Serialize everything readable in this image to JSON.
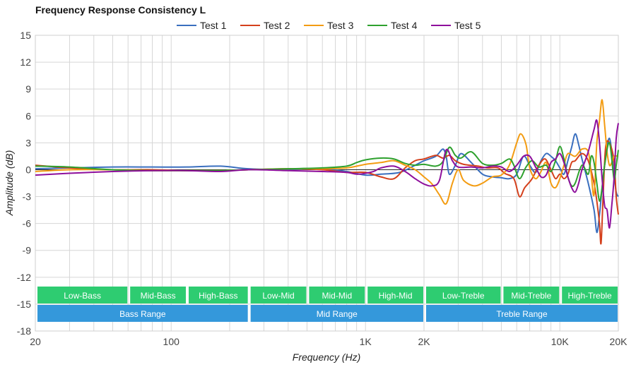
{
  "chart_data": {
    "type": "line",
    "title": "Frequency Response Consistency L",
    "xlabel": "Frequency (Hz)",
    "ylabel": "Amplitude (dB)",
    "x_scale": "log",
    "xlim": [
      20,
      20000
    ],
    "ylim": [
      -18,
      15
    ],
    "legend_position": "top-center",
    "grid": true,
    "x_ticks": [
      {
        "value": 20,
        "label": "20"
      },
      {
        "value": 100,
        "label": "100"
      },
      {
        "value": 1000,
        "label": "1K"
      },
      {
        "value": 2000,
        "label": "2K"
      },
      {
        "value": 10000,
        "label": "10K"
      },
      {
        "value": 20000,
        "label": "20K"
      }
    ],
    "y_ticks": [
      15,
      12,
      9,
      6,
      3,
      0,
      -3,
      -6,
      -9,
      -12,
      -15,
      -18
    ],
    "bands": [
      {
        "label": "Low-Bass",
        "from": 20,
        "to": 60,
        "row": 1,
        "color": "#2ecc71"
      },
      {
        "label": "Mid-Bass",
        "from": 60,
        "to": 120,
        "row": 1,
        "color": "#2ecc71"
      },
      {
        "label": "High-Bass",
        "from": 120,
        "to": 250,
        "row": 1,
        "color": "#2ecc71"
      },
      {
        "label": "Low-Mid",
        "from": 250,
        "to": 500,
        "row": 1,
        "color": "#2ecc71"
      },
      {
        "label": "Mid-Mid",
        "from": 500,
        "to": 1000,
        "row": 1,
        "color": "#2ecc71"
      },
      {
        "label": "High-Mid",
        "from": 1000,
        "to": 2000,
        "row": 1,
        "color": "#2ecc71"
      },
      {
        "label": "Low-Treble",
        "from": 2000,
        "to": 5000,
        "row": 1,
        "color": "#2ecc71"
      },
      {
        "label": "Mid-Treble",
        "from": 5000,
        "to": 10000,
        "row": 1,
        "color": "#2ecc71"
      },
      {
        "label": "High-Treble",
        "from": 10000,
        "to": 20000,
        "row": 1,
        "color": "#2ecc71"
      },
      {
        "label": "Bass Range",
        "from": 20,
        "to": 250,
        "row": 2,
        "color": "#3498db"
      },
      {
        "label": "Mid Range",
        "from": 250,
        "to": 2000,
        "row": 2,
        "color": "#3498db"
      },
      {
        "label": "Treble Range",
        "from": 2000,
        "to": 20000,
        "row": 2,
        "color": "#3498db"
      }
    ],
    "series": [
      {
        "name": "Test 1",
        "color": "#3a6fbf",
        "points": [
          [
            20,
            0.1
          ],
          [
            30,
            0.2
          ],
          [
            50,
            0.3
          ],
          [
            80,
            0.3
          ],
          [
            120,
            0.3
          ],
          [
            180,
            0.4
          ],
          [
            250,
            0.1
          ],
          [
            400,
            0
          ],
          [
            600,
            0.1
          ],
          [
            800,
            -0.2
          ],
          [
            1000,
            -0.6
          ],
          [
            1200,
            -0.5
          ],
          [
            1500,
            -0.3
          ],
          [
            1800,
            0.5
          ],
          [
            2000,
            1.0
          ],
          [
            2300,
            1.5
          ],
          [
            2500,
            2.3
          ],
          [
            2600,
            1.5
          ],
          [
            2700,
            -0.5
          ],
          [
            2900,
            0.5
          ],
          [
            3100,
            1.8
          ],
          [
            3500,
            0.8
          ],
          [
            4000,
            -0.5
          ],
          [
            4500,
            -0.8
          ],
          [
            5000,
            -0.9
          ],
          [
            5500,
            -1.0
          ],
          [
            6000,
            -0.5
          ],
          [
            6500,
            1.5
          ],
          [
            7000,
            0.5
          ],
          [
            7500,
            -0.3
          ],
          [
            8000,
            1.0
          ],
          [
            8500,
            1.8
          ],
          [
            9000,
            1.5
          ],
          [
            9500,
            1.0
          ],
          [
            10000,
            0.2
          ],
          [
            10500,
            -0.5
          ],
          [
            11000,
            1.0
          ],
          [
            11500,
            2.5
          ],
          [
            12000,
            4.0
          ],
          [
            12500,
            2.8
          ],
          [
            13000,
            1.2
          ],
          [
            14000,
            -1.5
          ],
          [
            15000,
            -4.5
          ],
          [
            15500,
            -7.0
          ],
          [
            16000,
            -5.0
          ],
          [
            16500,
            -2.0
          ],
          [
            17000,
            0.5
          ],
          [
            18000,
            3.5
          ],
          [
            19000,
            -0.5
          ],
          [
            19500,
            -2.5
          ],
          [
            20000,
            -3.0
          ]
        ]
      },
      {
        "name": "Test 2",
        "color": "#d4401c",
        "points": [
          [
            20,
            0.5
          ],
          [
            30,
            0.2
          ],
          [
            50,
            0.0
          ],
          [
            80,
            0.0
          ],
          [
            120,
            -0.1
          ],
          [
            180,
            -0.1
          ],
          [
            250,
            0
          ],
          [
            400,
            0.1
          ],
          [
            600,
            0.0
          ],
          [
            800,
            -0.3
          ],
          [
            1000,
            -0.3
          ],
          [
            1200,
            -0.8
          ],
          [
            1400,
            -1.0
          ],
          [
            1600,
            0.2
          ],
          [
            1800,
            1.0
          ],
          [
            2000,
            1.2
          ],
          [
            2300,
            1.6
          ],
          [
            2500,
            1.3
          ],
          [
            2700,
            1.6
          ],
          [
            2900,
            1.0
          ],
          [
            3200,
            0.6
          ],
          [
            3800,
            0.4
          ],
          [
            4200,
            0.2
          ],
          [
            4800,
            0.2
          ],
          [
            5200,
            -0.4
          ],
          [
            5800,
            -1.0
          ],
          [
            6200,
            -3.0
          ],
          [
            6600,
            -2.0
          ],
          [
            7200,
            -1.0
          ],
          [
            7800,
            0.5
          ],
          [
            8400,
            1.2
          ],
          [
            9000,
            0.0
          ],
          [
            9500,
            -1.0
          ],
          [
            10000,
            -0.5
          ],
          [
            10500,
            -1.0
          ],
          [
            11000,
            -0.5
          ],
          [
            11500,
            0.8
          ],
          [
            12000,
            1.0
          ],
          [
            13000,
            1.8
          ],
          [
            14000,
            1.0
          ],
          [
            15000,
            -1.5
          ],
          [
            15500,
            -3.5
          ],
          [
            16000,
            -6.0
          ],
          [
            16300,
            -8.2
          ],
          [
            16700,
            -3.0
          ],
          [
            17200,
            2.5
          ],
          [
            18000,
            3.0
          ],
          [
            19000,
            1.0
          ],
          [
            19500,
            -3.0
          ],
          [
            20000,
            -5.0
          ]
        ]
      },
      {
        "name": "Test 3",
        "color": "#f39c12",
        "points": [
          [
            20,
            -0.2
          ],
          [
            30,
            0.0
          ],
          [
            50,
            0.0
          ],
          [
            80,
            -0.1
          ],
          [
            120,
            -0.1
          ],
          [
            180,
            -0.1
          ],
          [
            250,
            0
          ],
          [
            400,
            0.1
          ],
          [
            600,
            0.1
          ],
          [
            800,
            0.2
          ],
          [
            1000,
            0.6
          ],
          [
            1200,
            0.8
          ],
          [
            1400,
            1.0
          ],
          [
            1600,
            0.5
          ],
          [
            1800,
            0.0
          ],
          [
            2000,
            -0.8
          ],
          [
            2200,
            -1.6
          ],
          [
            2400,
            -2.8
          ],
          [
            2600,
            -3.8
          ],
          [
            2800,
            -1.5
          ],
          [
            3000,
            0.0
          ],
          [
            3200,
            -1.2
          ],
          [
            3600,
            -1.8
          ],
          [
            4000,
            -1.5
          ],
          [
            4500,
            -0.8
          ],
          [
            5000,
            -0.6
          ],
          [
            5500,
            0.5
          ],
          [
            6000,
            3.0
          ],
          [
            6300,
            4.0
          ],
          [
            6700,
            2.8
          ],
          [
            7000,
            0.2
          ],
          [
            7500,
            -1.0
          ],
          [
            8000,
            -0.2
          ],
          [
            8500,
            0.8
          ],
          [
            9000,
            -1.5
          ],
          [
            9500,
            -2.0
          ],
          [
            10000,
            -1.0
          ],
          [
            10500,
            0.5
          ],
          [
            11000,
            1.8
          ],
          [
            12000,
            1.5
          ],
          [
            13000,
            2.3
          ],
          [
            14000,
            2.0
          ],
          [
            14500,
            -0.5
          ],
          [
            15000,
            -2.8
          ],
          [
            15500,
            3.0
          ],
          [
            16000,
            5.5
          ],
          [
            16500,
            7.8
          ],
          [
            17000,
            5.0
          ],
          [
            17500,
            2.0
          ],
          [
            18000,
            0.5
          ],
          [
            18500,
            0.8
          ],
          [
            19000,
            1.5
          ],
          [
            20000,
            1.5
          ]
        ]
      },
      {
        "name": "Test 4",
        "color": "#2ea12e",
        "points": [
          [
            20,
            0.4
          ],
          [
            30,
            0.3
          ],
          [
            50,
            0.0
          ],
          [
            80,
            -0.1
          ],
          [
            120,
            -0.1
          ],
          [
            180,
            -0.1
          ],
          [
            250,
            0
          ],
          [
            400,
            0.1
          ],
          [
            600,
            0.2
          ],
          [
            800,
            0.4
          ],
          [
            900,
            0.8
          ],
          [
            1000,
            1.1
          ],
          [
            1200,
            1.3
          ],
          [
            1400,
            1.2
          ],
          [
            1600,
            0.7
          ],
          [
            1800,
            0.5
          ],
          [
            2000,
            0.6
          ],
          [
            2300,
            0.4
          ],
          [
            2500,
            0.9
          ],
          [
            2700,
            2.5
          ],
          [
            2900,
            1.6
          ],
          [
            3100,
            1.3
          ],
          [
            3500,
            2.0
          ],
          [
            4000,
            0.7
          ],
          [
            4500,
            0.5
          ],
          [
            5000,
            0.7
          ],
          [
            5500,
            1.2
          ],
          [
            5800,
            0.5
          ],
          [
            6200,
            -1.0
          ],
          [
            6700,
            0.3
          ],
          [
            7200,
            1.0
          ],
          [
            7800,
            0.3
          ],
          [
            8500,
            0.5
          ],
          [
            9000,
            -0.2
          ],
          [
            9500,
            1.0
          ],
          [
            10000,
            2.6
          ],
          [
            10500,
            1.2
          ],
          [
            11000,
            -0.8
          ],
          [
            11500,
            -1.8
          ],
          [
            12000,
            -1.5
          ],
          [
            13000,
            0.5
          ],
          [
            14000,
            -0.5
          ],
          [
            14500,
            1.5
          ],
          [
            15000,
            0.8
          ],
          [
            15500,
            -1.5
          ],
          [
            16000,
            -3.5
          ],
          [
            16500,
            -2.0
          ],
          [
            17000,
            0.5
          ],
          [
            18000,
            3.0
          ],
          [
            19000,
            -1.0
          ],
          [
            19500,
            0.5
          ],
          [
            20000,
            2.2
          ]
        ]
      },
      {
        "name": "Test 5",
        "color": "#8e0f9c",
        "points": [
          [
            20,
            -0.6
          ],
          [
            30,
            -0.4
          ],
          [
            50,
            -0.2
          ],
          [
            80,
            -0.1
          ],
          [
            120,
            -0.1
          ],
          [
            180,
            -0.2
          ],
          [
            250,
            0
          ],
          [
            400,
            -0.1
          ],
          [
            600,
            -0.2
          ],
          [
            800,
            -0.3
          ],
          [
            900,
            -0.5
          ],
          [
            1000,
            -0.4
          ],
          [
            1100,
            -0.2
          ],
          [
            1200,
            0.2
          ],
          [
            1400,
            0.4
          ],
          [
            1600,
            -0.2
          ],
          [
            1800,
            -1.0
          ],
          [
            2000,
            -1.6
          ],
          [
            2200,
            -1.8
          ],
          [
            2400,
            -1.2
          ],
          [
            2600,
            2.2
          ],
          [
            2800,
            1.0
          ],
          [
            3000,
            0.3
          ],
          [
            3500,
            0.3
          ],
          [
            4000,
            0.2
          ],
          [
            4500,
            0.4
          ],
          [
            5000,
            0.3
          ],
          [
            5500,
            -0.2
          ],
          [
            6000,
            0.5
          ],
          [
            6500,
            1.5
          ],
          [
            7000,
            1.5
          ],
          [
            7500,
            0.3
          ],
          [
            8000,
            -0.8
          ],
          [
            8500,
            -0.6
          ],
          [
            9000,
            0.8
          ],
          [
            9500,
            1.2
          ],
          [
            10000,
            1.8
          ],
          [
            10500,
            0.8
          ],
          [
            11000,
            -0.8
          ],
          [
            11500,
            -2.0
          ],
          [
            12000,
            -2.5
          ],
          [
            12500,
            -1.5
          ],
          [
            13000,
            0.0
          ],
          [
            14000,
            2.0
          ],
          [
            15000,
            4.5
          ],
          [
            15500,
            5.5
          ],
          [
            16000,
            3.0
          ],
          [
            16500,
            -1.0
          ],
          [
            17000,
            -4.0
          ],
          [
            17500,
            -4.5
          ],
          [
            18000,
            -6.5
          ],
          [
            18500,
            -4.0
          ],
          [
            19000,
            -1.0
          ],
          [
            19500,
            3.5
          ],
          [
            20000,
            5.2
          ]
        ]
      }
    ]
  }
}
